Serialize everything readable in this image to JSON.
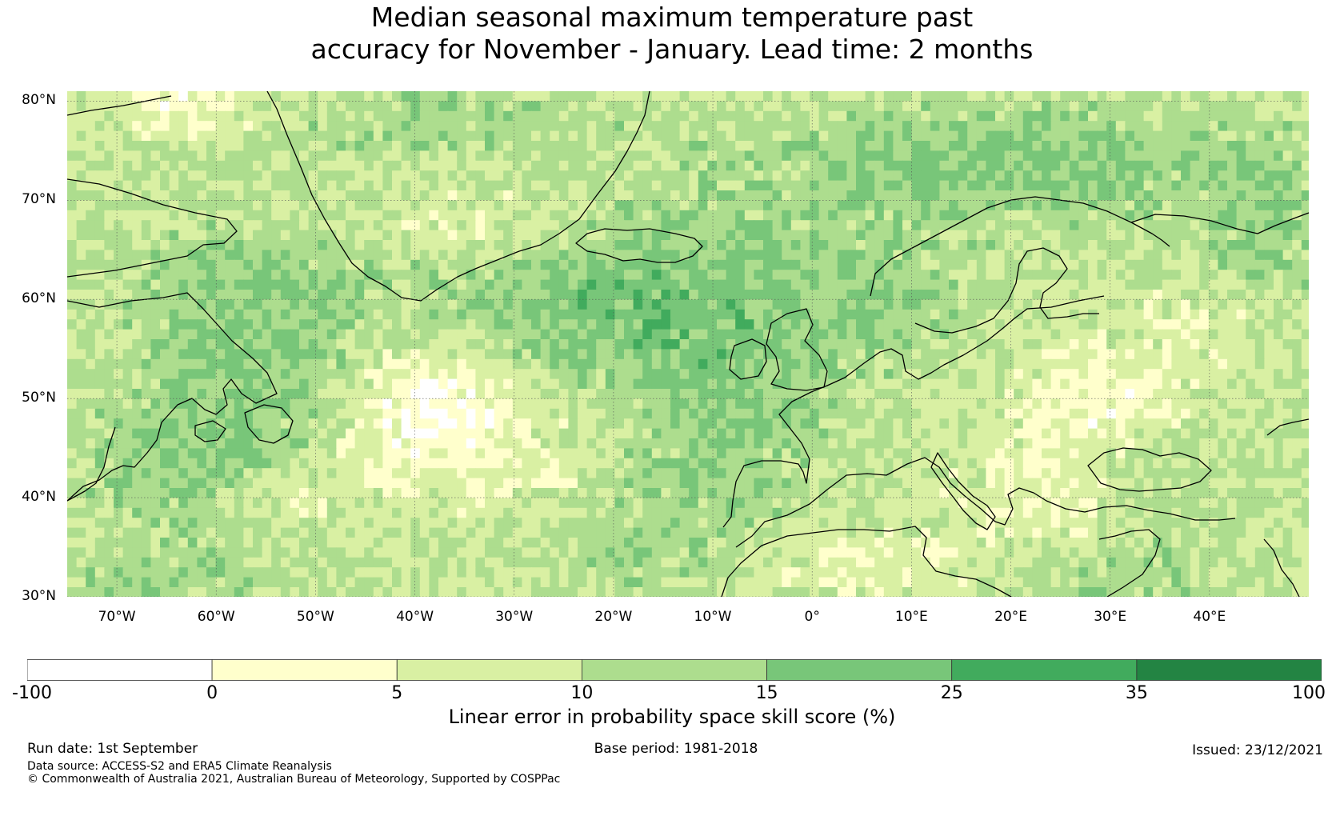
{
  "title": {
    "line1": "Median seasonal maximum temperature past",
    "line2": "accuracy for November - January. Lead time: 2 months"
  },
  "map": {
    "lat_range": [
      30,
      81
    ],
    "lon_range": [
      -75,
      50
    ],
    "lat_labels": [
      "80°N",
      "70°N",
      "60°N",
      "50°N",
      "40°N",
      "30°N"
    ],
    "lat_values": [
      80,
      70,
      60,
      50,
      40,
      30
    ],
    "lon_labels": [
      "70°W",
      "60°W",
      "50°W",
      "40°W",
      "30°W",
      "20°W",
      "10°W",
      "0°",
      "10°E",
      "20°E",
      "30°E",
      "40°E"
    ],
    "lon_values": [
      -70,
      -60,
      -50,
      -40,
      -30,
      -20,
      -10,
      0,
      10,
      20,
      30,
      40
    ],
    "gridlines": true
  },
  "colorbar": {
    "bounds": [
      "-100",
      "0",
      "5",
      "10",
      "15",
      "25",
      "35",
      "100"
    ],
    "colors": [
      "#ffffff",
      "#ffffcc",
      "#d9f0a3",
      "#addd8e",
      "#78c679",
      "#41ab5d",
      "#238443"
    ],
    "label": "Linear error in probability space skill score (%)"
  },
  "footer": {
    "run_date": "Run date: 1st September",
    "base_period": "Base period: 1981-2018",
    "issued": "Issued: 23/12/2021",
    "data_source": "Data source: ACCESS-S2 and ERA5 Climate Reanalysis",
    "copyright": "© Commonwealth of Australia 2021, Australian Bureau of Meteorology, Supported by COSPPac"
  }
}
